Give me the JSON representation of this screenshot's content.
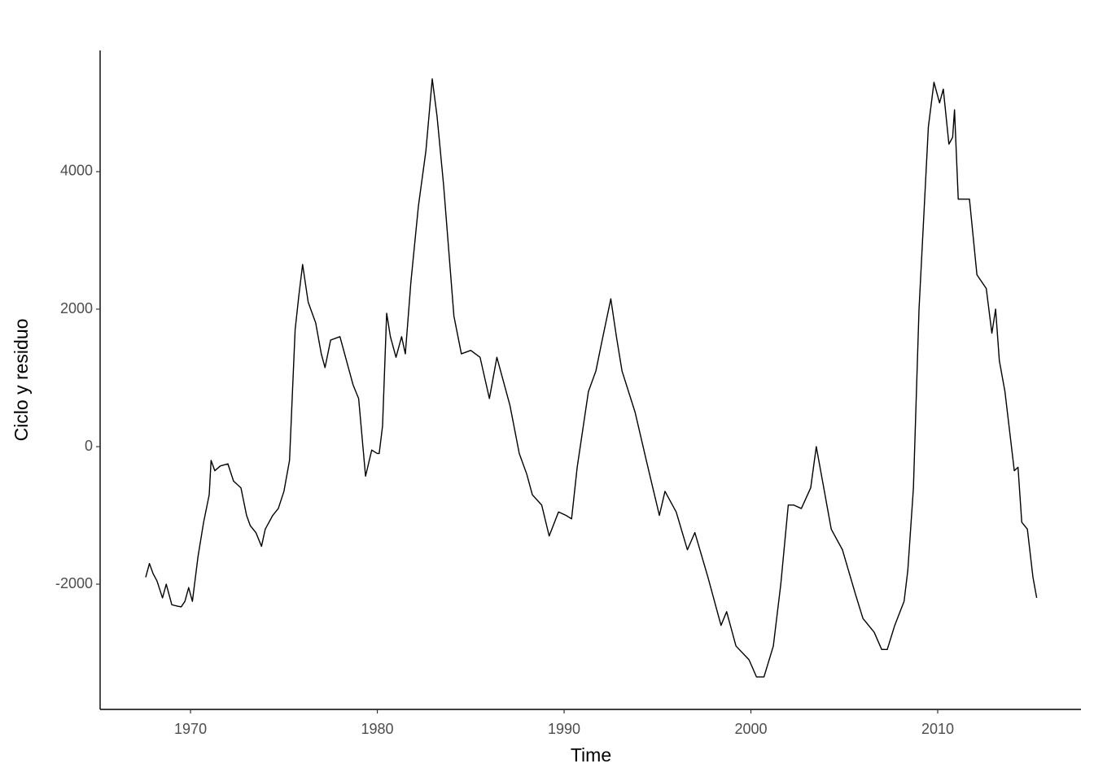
{
  "chart_data": {
    "type": "line",
    "x_label": "Time",
    "y_label": "Ciclo y residuo",
    "x": [
      1967.6,
      1967.8,
      1968.0,
      1968.2,
      1968.5,
      1968.7,
      1969.0,
      1969.3,
      1969.5,
      1969.7,
      1969.9,
      1970.1,
      1970.4,
      1970.7,
      1971.0,
      1971.1,
      1971.3,
      1971.6,
      1972.0,
      1972.3,
      1972.7,
      1973.0,
      1973.2,
      1973.5,
      1973.8,
      1974.0,
      1974.4,
      1974.7,
      1975.0,
      1975.3,
      1975.6,
      1975.8,
      1976.0,
      1976.3,
      1976.7,
      1977.0,
      1977.2,
      1977.5,
      1978.0,
      1978.3,
      1978.7,
      1979.0,
      1979.37,
      1979.7,
      1980.0,
      1980.1,
      1980.28,
      1980.5,
      1980.7,
      1981.0,
      1981.3,
      1981.5,
      1981.8,
      1982.2,
      1982.6,
      1982.94,
      1983.2,
      1983.55,
      1984.1,
      1984.5,
      1985.0,
      1985.5,
      1986.0,
      1986.4,
      1987.1,
      1987.6,
      1988.0,
      1988.3,
      1988.8,
      1989.2,
      1989.7,
      1990.1,
      1990.4,
      1990.7,
      1991.3,
      1991.7,
      1992.0,
      1992.5,
      1992.8,
      1993.1,
      1993.8,
      1994.4,
      1995.1,
      1995.4,
      1996.0,
      1996.6,
      1997.0,
      1997.7,
      1998.4,
      1998.7,
      1999.2,
      1999.9,
      2000.3,
      2000.7,
      2001.2,
      2001.6,
      2002.0,
      2002.3,
      2002.7,
      2003.2,
      2003.5,
      2003.8,
      2004.3,
      2004.9,
      2005.6,
      2006.0,
      2006.6,
      2007.0,
      2007.3,
      2007.7,
      2008.2,
      2008.4,
      2008.7,
      2009.0,
      2009.5,
      2009.8,
      2010.1,
      2010.3,
      2010.6,
      2010.8,
      2010.9,
      2011.1,
      2011.7,
      2012.1,
      2012.6,
      2012.9,
      2013.1,
      2013.3,
      2013.6,
      2014.1,
      2014.3,
      2014.5,
      2014.8,
      2015.1,
      2015.3
    ],
    "values": [
      -1900,
      -1700,
      -1850,
      -1950,
      -2200,
      -2000,
      -2300,
      -2320,
      -2330,
      -2250,
      -2050,
      -2250,
      -1600,
      -1100,
      -700,
      -200,
      -350,
      -280,
      -250,
      -500,
      -600,
      -1000,
      -1150,
      -1250,
      -1450,
      -1200,
      -1000,
      -900,
      -650,
      -200,
      1700,
      2200,
      2650,
      2100,
      1800,
      1350,
      1150,
      1550,
      1600,
      1300,
      900,
      700,
      -430,
      -50,
      -100,
      -100,
      300,
      1940,
      1600,
      1300,
      1600,
      1350,
      2400,
      3500,
      4300,
      5350,
      4800,
      3800,
      1900,
      1350,
      1400,
      1300,
      700,
      1300,
      600,
      -100,
      -400,
      -700,
      -850,
      -1300,
      -950,
      -1000,
      -1050,
      -300,
      800,
      1100,
      1500,
      2150,
      1600,
      1100,
      500,
      -200,
      -1000,
      -650,
      -950,
      -1500,
      -1250,
      -1900,
      -2600,
      -2400,
      -2900,
      -3100,
      -3350,
      -3350,
      -2900,
      -2000,
      -850,
      -850,
      -900,
      -600,
      0,
      -450,
      -1200,
      -1500,
      -2150,
      -2500,
      -2700,
      -2950,
      -2950,
      -2600,
      -2250,
      -1800,
      -600,
      2000,
      4650,
      5300,
      5000,
      5200,
      4400,
      4500,
      4900,
      3600,
      3600,
      2500,
      2300,
      1650,
      2000,
      1250,
      800,
      -350,
      -300,
      -1100,
      -1200,
      -1900,
      -2200
    ],
    "color": "#000000",
    "xlim": [
      1965.16,
      2017.67
    ],
    "xticks": [
      1970,
      1980,
      1990,
      2000,
      2010
    ],
    "ylim": [
      -3822,
      5763
    ],
    "yticks": [
      -2000,
      0,
      2000,
      4000
    ],
    "grid": false
  }
}
